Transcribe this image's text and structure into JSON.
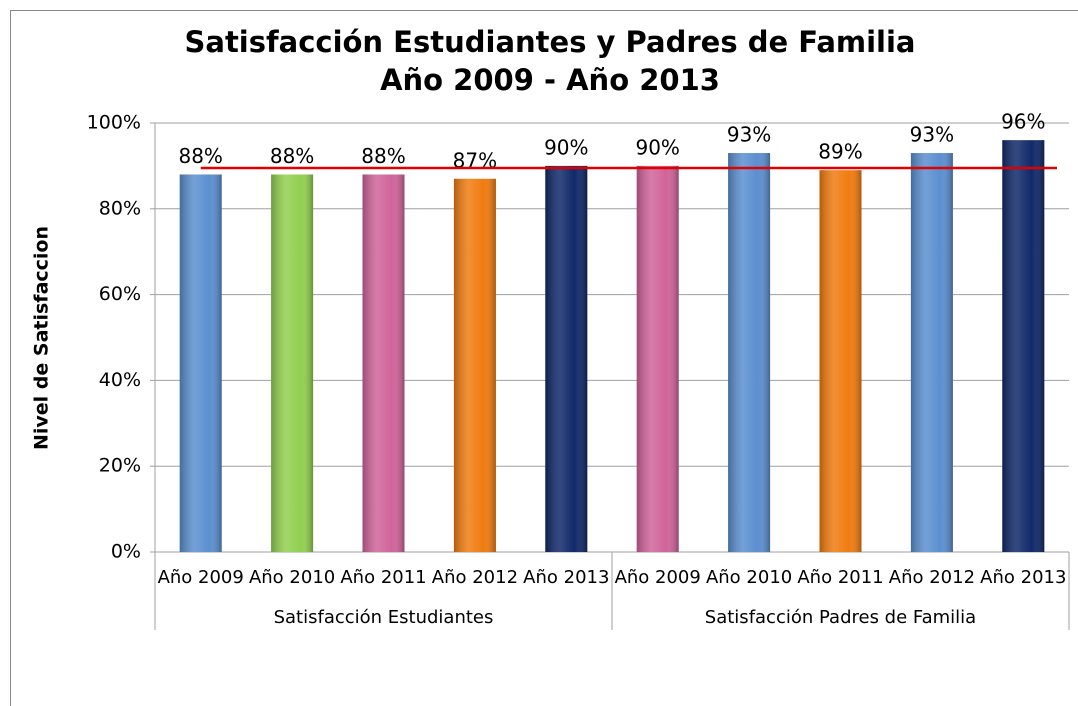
{
  "chart_data": {
    "type": "bar",
    "title": [
      "Satisfacción Estudiantes y Padres de Familia",
      "Año 2009 - Año 2013"
    ],
    "y_label": "Nivel de Satisfaccion",
    "categories": [
      "Año 2009",
      "Año 2010",
      "Año 2011",
      "Año 2012",
      "Año 2013",
      "Año 2009",
      "Año 2010",
      "Año 2011",
      "Año 2012",
      "Año 2013"
    ],
    "groups": [
      {
        "name": "Satisfacción Estudiantes",
        "count": 5
      },
      {
        "name": "Satisfacción Padres de Familia",
        "count": 5
      }
    ],
    "values": [
      88,
      88,
      88,
      87,
      90,
      90,
      93,
      89,
      93,
      96
    ],
    "value_labels": [
      "88%",
      "88%",
      "88%",
      "87%",
      "90%",
      "90%",
      "93%",
      "89%",
      "93%",
      "96%"
    ],
    "colors": [
      "#5b8fd0",
      "#92d050",
      "#d0649a",
      "#f07c10",
      "#10296a",
      "#d0649a",
      "#5b8fd0",
      "#f07c10",
      "#5b8fd0",
      "#10296a"
    ],
    "target_line": {
      "value": 89.5,
      "color": "#e00000"
    },
    "ylim": [
      0,
      100
    ],
    "yticks": [
      {
        "value": 0,
        "label": "0%"
      },
      {
        "value": 20,
        "label": "20%"
      },
      {
        "value": 40,
        "label": "40%"
      },
      {
        "value": 60,
        "label": "60%"
      },
      {
        "value": 80,
        "label": "80%"
      },
      {
        "value": 100,
        "label": "100%"
      }
    ],
    "grid": true
  }
}
